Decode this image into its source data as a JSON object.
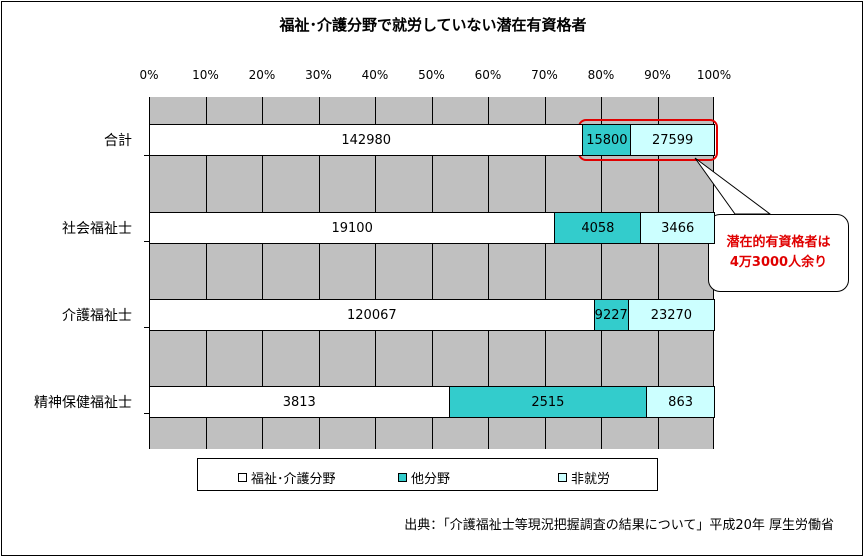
{
  "chart_data": {
    "type": "bar",
    "orientation": "horizontal",
    "stacking": "percent",
    "title": "福祉･介護分野で就労していない潜在有資格者",
    "x_ticks": [
      "0%",
      "10%",
      "20%",
      "30%",
      "40%",
      "50%",
      "60%",
      "70%",
      "80%",
      "90%",
      "100%"
    ],
    "xlim": [
      0,
      100
    ],
    "categories": [
      "合計",
      "社会福祉士",
      "介護福祉士",
      "精神保健福祉士"
    ],
    "series": [
      {
        "name": "福祉･介護分野",
        "color": "#ffffff",
        "values": [
          142980,
          19100,
          120067,
          3813
        ]
      },
      {
        "name": "他分野",
        "color": "#33cccc",
        "values": [
          15800,
          4058,
          9227,
          2515
        ]
      },
      {
        "name": "非就労",
        "color": "#ccffff",
        "values": [
          27599,
          3466,
          23270,
          863
        ]
      }
    ],
    "legend_position": "bottom",
    "grid": true,
    "annotation": {
      "line1": "潜在的有資格者は",
      "line2": "4万3000人余り"
    },
    "source": "出典：「介護福祉士等現況把握調査の結果について」平成20年 厚生労働省"
  }
}
